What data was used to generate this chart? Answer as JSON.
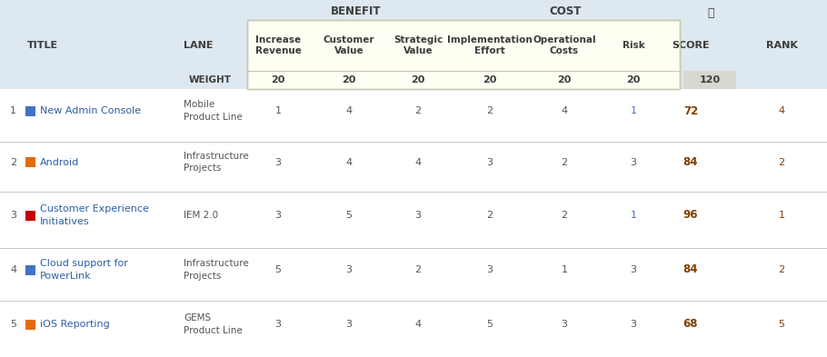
{
  "background_color": "#dde8f0",
  "header_bg": "#fffef2",
  "weight_row_bg": "#ebebd8",
  "score_col_bg": "#e0e0d8",
  "row_divider_color": "#c8c8c8",
  "box_border_color": "#c8c8b0",
  "benefit_header": "BENEFIT",
  "cost_header": "COST",
  "rows": [
    {
      "num": "1",
      "color": "#4472c4",
      "title": "New Admin Console",
      "lane": "Mobile\nProduct Line",
      "vals": [
        1,
        4,
        2,
        2,
        4,
        1
      ],
      "score": "72",
      "rank": "4"
    },
    {
      "num": "2",
      "color": "#e36c09",
      "title": "Android",
      "lane": "Infrastructure\nProjects",
      "vals": [
        3,
        4,
        4,
        3,
        2,
        3
      ],
      "score": "84",
      "rank": "2"
    },
    {
      "num": "3",
      "color": "#c00000",
      "title": "Customer Experience\nInitiatives",
      "lane": "IEM 2.0",
      "vals": [
        3,
        5,
        3,
        2,
        2,
        1
      ],
      "score": "96",
      "rank": "1"
    },
    {
      "num": "4",
      "color": "#4472c4",
      "title": "Cloud support for\nPowerLink",
      "lane": "Infrastructure\nProjects",
      "vals": [
        5,
        3,
        2,
        3,
        1,
        3
      ],
      "score": "84",
      "rank": "2"
    },
    {
      "num": "5",
      "color": "#e36c09",
      "title": "iOS Reporting",
      "lane": "GEMS\nProduct Line",
      "vals": [
        3,
        3,
        4,
        5,
        3,
        3
      ],
      "score": "68",
      "rank": "5"
    }
  ],
  "col_labels": [
    "Increase\nRevenue",
    "Customer\nValue",
    "Strategic\nValue",
    "Implementation\nEffort",
    "Operational\nCosts",
    "Risk"
  ],
  "weights": [
    "20",
    "20",
    "20",
    "20",
    "20",
    "20"
  ],
  "total_weight": "120",
  "header_text_color": "#3c3c3c",
  "title_link_color": "#2e5fa3",
  "val_color": "#555555",
  "score_color": "#7f3f00",
  "num_color": "#555555",
  "risk_highlight_color": "#4472c4"
}
